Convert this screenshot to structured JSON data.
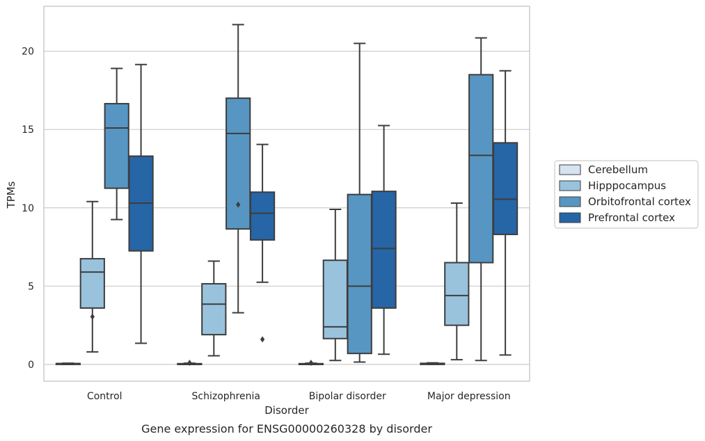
{
  "chart_data": {
    "type": "box",
    "title": "",
    "caption": "Gene expression for ENSG00000260328 by disorder",
    "xlabel": "Disorder",
    "ylabel": "TPMs",
    "ylim": [
      -1.07,
      22.87
    ],
    "yticks": [
      0,
      5,
      10,
      15,
      20
    ],
    "categories": [
      "Control",
      "Schizophrenia",
      "Bipolar disorder",
      "Major depression"
    ],
    "grid": "horizontal",
    "legend_position": "right",
    "series": [
      {
        "name": "Cerebellum",
        "color": "#d6e3f0",
        "boxes": [
          {
            "whislo": 0.0,
            "q1": 0.0,
            "med": 0.03,
            "q3": 0.06,
            "whishi": 0.08,
            "fliers": []
          },
          {
            "whislo": 0.0,
            "q1": 0.0,
            "med": 0.03,
            "q3": 0.05,
            "whishi": 0.08,
            "fliers": [
              0.1
            ]
          },
          {
            "whislo": 0.0,
            "q1": 0.0,
            "med": 0.03,
            "q3": 0.05,
            "whishi": 0.08,
            "fliers": [
              0.1
            ]
          },
          {
            "whislo": 0.0,
            "q1": 0.0,
            "med": 0.04,
            "q3": 0.07,
            "whishi": 0.1,
            "fliers": []
          }
        ]
      },
      {
        "name": "Hipppocampus",
        "color": "#99c2dd",
        "boxes": [
          {
            "whislo": 0.8,
            "q1": 3.6,
            "med": 5.9,
            "q3": 6.75,
            "whishi": 10.4,
            "fliers": [
              3.05
            ]
          },
          {
            "whislo": 0.55,
            "q1": 1.9,
            "med": 3.85,
            "q3": 5.15,
            "whishi": 6.6,
            "fliers": []
          },
          {
            "whislo": 0.25,
            "q1": 1.65,
            "med": 2.4,
            "q3": 6.65,
            "whishi": 9.9,
            "fliers": []
          },
          {
            "whislo": 0.3,
            "q1": 2.5,
            "med": 4.4,
            "q3": 6.5,
            "whishi": 10.3,
            "fliers": []
          }
        ]
      },
      {
        "name": "Orbitofrontal cortex",
        "color": "#5796c3",
        "boxes": [
          {
            "whislo": 9.25,
            "q1": 11.25,
            "med": 15.1,
            "q3": 16.65,
            "whishi": 18.9,
            "fliers": []
          },
          {
            "whislo": 3.3,
            "q1": 8.65,
            "med": 14.75,
            "q3": 17.0,
            "whishi": 21.7,
            "fliers": [
              10.2
            ]
          },
          {
            "whislo": 0.15,
            "q1": 0.7,
            "med": 5.0,
            "q3": 10.85,
            "whishi": 20.5,
            "fliers": []
          },
          {
            "whislo": 0.25,
            "q1": 6.5,
            "med": 13.35,
            "q3": 18.5,
            "whishi": 20.85,
            "fliers": []
          }
        ]
      },
      {
        "name": "Prefrontal cortex",
        "color": "#2665a6",
        "boxes": [
          {
            "whislo": 1.35,
            "q1": 7.25,
            "med": 10.3,
            "q3": 13.3,
            "whishi": 19.15,
            "fliers": []
          },
          {
            "whislo": 5.25,
            "q1": 7.95,
            "med": 9.65,
            "q3": 11.0,
            "whishi": 14.05,
            "fliers": [
              1.6
            ]
          },
          {
            "whislo": 0.65,
            "q1": 3.6,
            "med": 7.4,
            "q3": 11.05,
            "whishi": 15.25,
            "fliers": []
          },
          {
            "whislo": 0.6,
            "q1": 8.3,
            "med": 10.55,
            "q3": 14.15,
            "whishi": 18.75,
            "fliers": []
          }
        ]
      }
    ]
  }
}
